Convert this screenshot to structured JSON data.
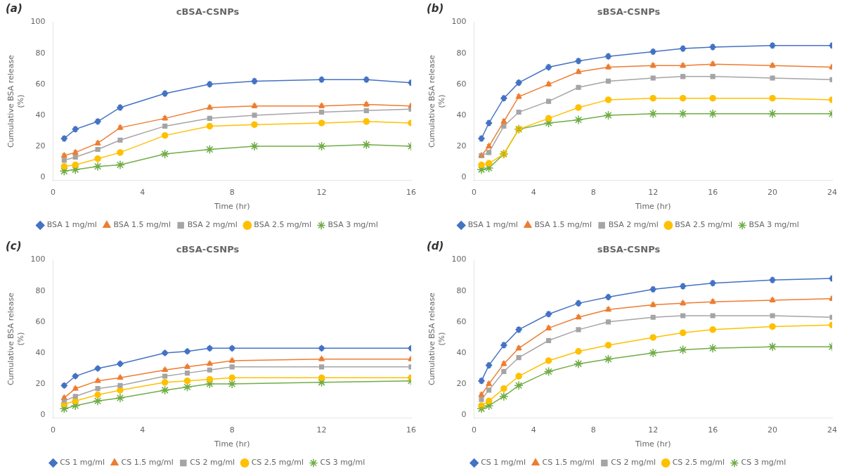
{
  "chart_data": [
    {
      "type": "line",
      "title": "cBSA-CSNPs",
      "annotation": "(a)",
      "xlabel": "Time (hr)",
      "ylabel": "Cumulative BSA release\n(%)",
      "xlim": [
        0,
        16
      ],
      "ylim": [
        -2,
        100
      ],
      "xticks": [
        0,
        4,
        8,
        12,
        16
      ],
      "yticks": [
        0,
        20,
        40,
        60,
        80,
        100
      ],
      "grid": false,
      "legend": "bottom",
      "x": [
        0.5,
        1,
        2,
        3,
        5,
        7,
        9,
        12,
        14,
        16
      ],
      "series": [
        {
          "name": "BSA 1 mg/ml",
          "color": "#4472C4",
          "marker": "diamond",
          "values": [
            25,
            31,
            36,
            45,
            54,
            60,
            62,
            63,
            63,
            61
          ],
          "errors": [
            1.5,
            1.5,
            1.5,
            1.5,
            1.5,
            1.5,
            1.5,
            1.5,
            1.5,
            1.5
          ]
        },
        {
          "name": "BSA 1.5 mg/ml",
          "color": "#ED7D31",
          "marker": "triangle",
          "values": [
            14,
            16,
            22,
            32,
            38,
            45,
            46,
            46,
            47,
            46
          ],
          "errors": [
            1.2,
            1.2,
            1.2,
            1.2,
            1.2,
            1.2,
            1.2,
            1.2,
            1.2,
            1.2
          ]
        },
        {
          "name": "BSA 2 mg/ml",
          "color": "#A5A5A5",
          "marker": "square",
          "values": [
            11,
            13,
            18,
            24,
            33,
            38,
            40,
            42,
            43,
            44
          ],
          "errors": [
            1.2,
            1.2,
            1.2,
            1.2,
            1.2,
            1.2,
            1.2,
            1.2,
            1.2,
            1.2
          ]
        },
        {
          "name": "BSA 2.5 mg/ml",
          "color": "#FFC000",
          "marker": "circle",
          "values": [
            7,
            8,
            12,
            16,
            27,
            33,
            34,
            35,
            36,
            35
          ],
          "errors": [
            1.0,
            1.0,
            1.0,
            1.0,
            1.0,
            1.0,
            1.0,
            1.0,
            1.0,
            1.0
          ]
        },
        {
          "name": "BSA 3 mg/ml",
          "color": "#70AD47",
          "marker": "star",
          "values": [
            4,
            5,
            7,
            8,
            15,
            18,
            20,
            20,
            21,
            20
          ],
          "errors": [
            0.8,
            0.8,
            0.8,
            0.8,
            0.8,
            0.8,
            0.8,
            0.8,
            0.8,
            0.8
          ]
        }
      ]
    },
    {
      "type": "line",
      "title": "sBSA-CSNPs",
      "annotation": "(b)",
      "xlabel": "Time (hr)",
      "ylabel": "Cumulative BSA release\n(%)",
      "xlim": [
        0,
        24
      ],
      "ylim": [
        -2,
        100
      ],
      "xticks": [
        0,
        4,
        8,
        12,
        16,
        20,
        24
      ],
      "yticks": [
        0,
        20,
        40,
        60,
        80,
        100
      ],
      "grid": false,
      "legend": "bottom",
      "x": [
        0.5,
        1,
        2,
        3,
        5,
        7,
        9,
        12,
        14,
        16,
        20,
        24
      ],
      "series": [
        {
          "name": "BSA 1 mg/ml",
          "color": "#4472C4",
          "marker": "diamond",
          "values": [
            25,
            35,
            51,
            61,
            71,
            75,
            78,
            81,
            83,
            84,
            85,
            85
          ],
          "errors": [
            1.5,
            1.5,
            1.5,
            1.5,
            1.5,
            1.5,
            1.5,
            1.5,
            1.5,
            1.5,
            1.5,
            1.5
          ]
        },
        {
          "name": "BSA 1.5 mg/ml",
          "color": "#ED7D31",
          "marker": "triangle",
          "values": [
            14,
            20,
            36,
            52,
            60,
            68,
            71,
            72,
            72,
            73,
            72,
            71
          ],
          "errors": [
            1.2,
            1.2,
            1.2,
            1.2,
            1.2,
            1.2,
            1.2,
            1.2,
            1.2,
            1.2,
            1.2,
            1.2
          ]
        },
        {
          "name": "BSA 2 mg/ml",
          "color": "#A5A5A5",
          "marker": "square",
          "values": [
            14,
            16,
            33,
            42,
            49,
            58,
            62,
            64,
            65,
            65,
            64,
            63
          ],
          "errors": [
            1.2,
            1.2,
            1.2,
            1.2,
            1.2,
            1.2,
            1.2,
            1.2,
            1.2,
            1.2,
            1.2,
            1.2
          ]
        },
        {
          "name": "BSA 2.5 mg/ml",
          "color": "#FFC000",
          "marker": "circle",
          "values": [
            8,
            9,
            15,
            31,
            38,
            45,
            50,
            51,
            51,
            51,
            51,
            50
          ],
          "errors": [
            1.0,
            1.0,
            1.0,
            1.0,
            1.0,
            1.0,
            1.0,
            1.0,
            1.0,
            1.0,
            1.0,
            1.0
          ]
        },
        {
          "name": "BSA 3 mg/ml",
          "color": "#70AD47",
          "marker": "star",
          "values": [
            5,
            6,
            15,
            31,
            35,
            37,
            40,
            41,
            41,
            41,
            41,
            41
          ],
          "errors": [
            0.8,
            0.8,
            0.8,
            0.8,
            0.8,
            0.8,
            0.8,
            0.8,
            0.8,
            0.8,
            0.8,
            0.8
          ]
        }
      ]
    },
    {
      "type": "line",
      "title": "cBSA-CSNPs",
      "annotation": "(c)",
      "xlabel": "Time (hr)",
      "ylabel": "Cumulative BSA release\n(%)",
      "xlim": [
        0,
        16
      ],
      "ylim": [
        -2,
        100
      ],
      "xticks": [
        0,
        4,
        8,
        12,
        16
      ],
      "yticks": [
        0,
        20,
        40,
        60,
        80,
        100
      ],
      "grid": false,
      "legend": "bottom",
      "x": [
        0.5,
        1,
        2,
        3,
        5,
        6,
        7,
        8,
        12,
        16
      ],
      "series": [
        {
          "name": "CS 1 mg/ml",
          "color": "#4472C4",
          "marker": "diamond",
          "values": [
            19,
            25,
            30,
            33,
            40,
            41,
            43,
            43,
            43,
            43
          ],
          "errors": [
            1.2,
            1.2,
            1.2,
            1.2,
            1.2,
            1.2,
            1.2,
            1.2,
            1.2,
            1.2
          ]
        },
        {
          "name": "CS 1.5 mg/ml",
          "color": "#ED7D31",
          "marker": "triangle",
          "values": [
            11,
            17,
            22,
            24,
            29,
            31,
            33,
            35,
            36,
            36
          ],
          "errors": [
            1.0,
            1.0,
            1.0,
            1.0,
            1.0,
            1.0,
            1.0,
            1.0,
            1.0,
            1.0
          ]
        },
        {
          "name": "CS 2 mg/ml",
          "color": "#A5A5A5",
          "marker": "square",
          "values": [
            9,
            12,
            17,
            19,
            25,
            27,
            29,
            31,
            31,
            31
          ],
          "errors": [
            1.0,
            1.0,
            1.0,
            1.0,
            1.0,
            1.0,
            1.0,
            1.0,
            1.0,
            1.0
          ]
        },
        {
          "name": "CS 2.5 mg/ml",
          "color": "#FFC000",
          "marker": "circle",
          "values": [
            7,
            9,
            13,
            16,
            21,
            22,
            23,
            24,
            24,
            24
          ],
          "errors": [
            0.8,
            0.8,
            0.8,
            0.8,
            0.8,
            0.8,
            0.8,
            0.8,
            0.8,
            0.8
          ]
        },
        {
          "name": "CS 3 mg/ml",
          "color": "#70AD47",
          "marker": "star",
          "values": [
            4,
            6,
            9,
            11,
            16,
            18,
            20,
            20,
            21,
            22
          ],
          "errors": [
            0.7,
            0.7,
            0.7,
            0.7,
            0.7,
            0.7,
            0.7,
            0.7,
            0.7,
            0.7
          ]
        }
      ]
    },
    {
      "type": "line",
      "title": "sBSA-CSNPs",
      "annotation": "(d)",
      "xlabel": "Time (hr)",
      "ylabel": "Cumulative BSA release\n(%)",
      "xlim": [
        0,
        24
      ],
      "ylim": [
        -2,
        100
      ],
      "xticks": [
        0,
        4,
        8,
        12,
        16,
        20,
        24
      ],
      "yticks": [
        0,
        20,
        40,
        60,
        80,
        100
      ],
      "grid": false,
      "legend": "bottom",
      "x": [
        0.5,
        1,
        2,
        3,
        5,
        7,
        9,
        12,
        14,
        16,
        20,
        24
      ],
      "series": [
        {
          "name": "CS 1 mg/ml",
          "color": "#4472C4",
          "marker": "diamond",
          "values": [
            22,
            32,
            45,
            55,
            65,
            72,
            76,
            81,
            83,
            85,
            87,
            88
          ],
          "errors": [
            1.5,
            1.5,
            1.5,
            1.5,
            1.5,
            1.5,
            1.5,
            1.5,
            1.5,
            1.5,
            1.5,
            1.5
          ]
        },
        {
          "name": "CS 1.5 mg/ml",
          "color": "#ED7D31",
          "marker": "triangle",
          "values": [
            13,
            20,
            33,
            43,
            56,
            63,
            68,
            71,
            72,
            73,
            74,
            75
          ],
          "errors": [
            1.2,
            1.2,
            1.2,
            1.2,
            1.2,
            1.2,
            1.2,
            1.2,
            1.2,
            1.2,
            1.2,
            1.2
          ]
        },
        {
          "name": "CS 2 mg/ml",
          "color": "#A5A5A5",
          "marker": "square",
          "values": [
            10,
            16,
            28,
            37,
            48,
            55,
            60,
            63,
            64,
            64,
            64,
            63
          ],
          "errors": [
            1.0,
            1.0,
            1.0,
            1.0,
            1.0,
            1.0,
            1.0,
            1.0,
            1.0,
            1.0,
            1.0,
            1.0
          ]
        },
        {
          "name": "CS 2.5 mg/ml",
          "color": "#FFC000",
          "marker": "circle",
          "values": [
            6,
            9,
            17,
            25,
            35,
            41,
            45,
            50,
            53,
            55,
            57,
            58
          ],
          "errors": [
            0.9,
            0.9,
            0.9,
            0.9,
            0.9,
            0.9,
            0.9,
            0.9,
            0.9,
            0.9,
            0.9,
            0.9
          ]
        },
        {
          "name": "CS 3 mg/ml",
          "color": "#70AD47",
          "marker": "star",
          "values": [
            4,
            6,
            12,
            19,
            28,
            33,
            36,
            40,
            42,
            43,
            44,
            44
          ],
          "errors": [
            0.7,
            0.7,
            0.7,
            0.7,
            0.7,
            0.7,
            0.7,
            0.7,
            0.7,
            0.7,
            0.7,
            0.7
          ]
        }
      ]
    }
  ]
}
